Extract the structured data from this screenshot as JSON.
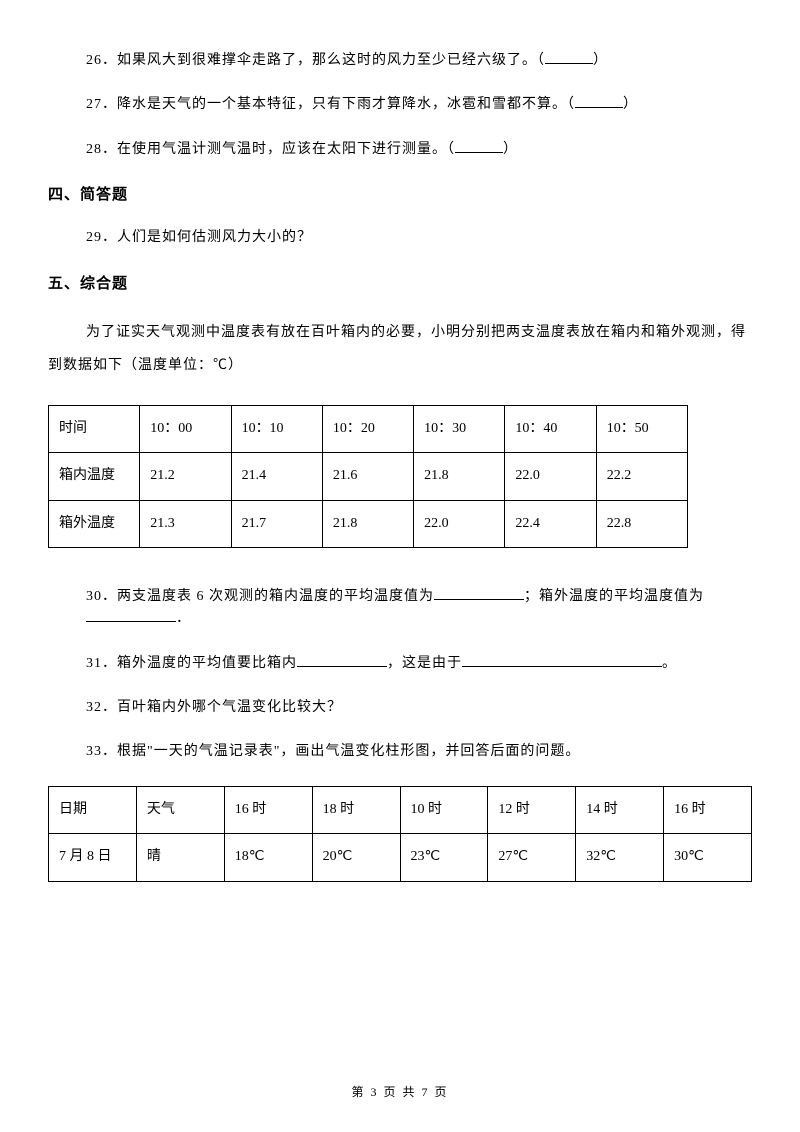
{
  "q26": "26．如果风大到很难撑伞走路了，那么这时的风力至少已经六级了。（",
  "q26_end": "）",
  "q27": "27．降水是天气的一个基本特征，只有下雨才算降水，冰雹和雪都不算。（",
  "q27_end": "）",
  "q28": "28．在使用气温计测气温时，应该在太阳下进行测量。（",
  "q28_end": "）",
  "section4": "四、简答题",
  "q29": "29．人们是如何估测风力大小的？",
  "section5": "五、综合题",
  "intro5": "为了证实天气观测中温度表有放在百叶箱内的必要，小明分别把两支温度表放在箱内和箱外观测，得到数据如下（温度单位：℃）",
  "table1": {
    "rows": [
      [
        "时间",
        "10：00",
        "10：10",
        "10：20",
        "10：30",
        "10：40",
        "10：50"
      ],
      [
        "箱内温度",
        "21.2",
        "21.4",
        "21.6",
        "21.8",
        "22.0",
        "22.2"
      ],
      [
        "箱外温度",
        "21.3",
        "21.7",
        "21.8",
        "22.0",
        "22.4",
        "22.8"
      ]
    ]
  },
  "q30a": "30．两支温度表 6 次观测的箱内温度的平均温度值为",
  "q30b": "；箱外温度的平均温度值为",
  "q30c": "．",
  "q31a": "31．箱外温度的平均值要比箱内",
  "q31b": "，这是由于",
  "q31c": "。",
  "q32": "32．百叶箱内外哪个气温变化比较大？",
  "q33": "33．根据\"一天的气温记录表\"，画出气温变化柱形图，并回答后面的问题。",
  "table2": {
    "rows": [
      [
        "日期",
        "天气",
        "16 时",
        "18 时",
        "10 时",
        "12 时",
        "14 时",
        "16 时"
      ],
      [
        "7 月 8 日",
        "晴",
        "18℃",
        "20℃",
        "23℃",
        "27℃",
        "32℃",
        "30℃"
      ]
    ]
  },
  "footer": "第 3 页 共 7 页"
}
